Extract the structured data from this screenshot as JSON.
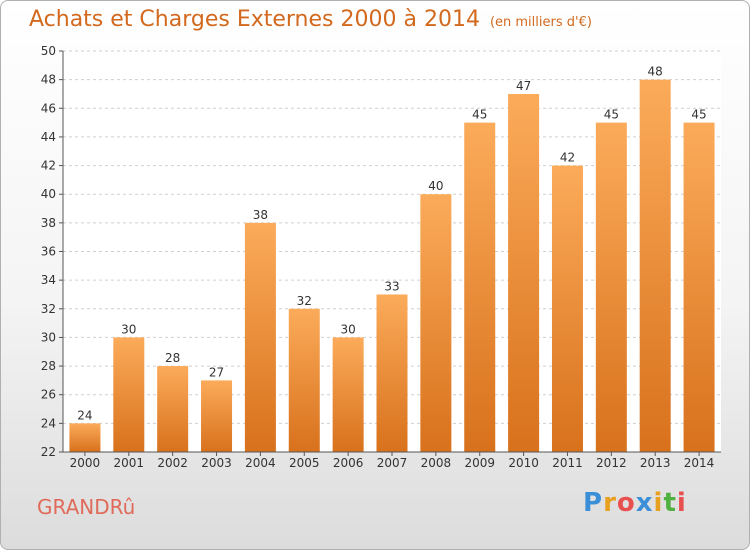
{
  "header": {
    "title": "Achats et Charges Externes 2000 à 2014",
    "subtitle": "(en milliers d'€)"
  },
  "footer": {
    "commune": "GRANDRû",
    "logo_letters": [
      "P",
      "r",
      "o",
      "x",
      "i",
      "t",
      "i"
    ],
    "logo_colors": [
      "#3a8fd8",
      "#e8a020",
      "#e85050",
      "#3a8fd8",
      "#e8a020",
      "#50b040",
      "#e85050"
    ]
  },
  "colors": {
    "bar_light": "#fbab5a",
    "bar_dark": "#d8711c",
    "title": "#d2691e",
    "commune": "#e06a5a",
    "grid": "#cfcfcf"
  },
  "chart_data": {
    "type": "bar",
    "categories": [
      "2000",
      "2001",
      "2002",
      "2003",
      "2004",
      "2005",
      "2006",
      "2007",
      "2008",
      "2009",
      "2010",
      "2011",
      "2012",
      "2013",
      "2014"
    ],
    "values": [
      24,
      30,
      28,
      27,
      38,
      32,
      30,
      33,
      40,
      45,
      47,
      42,
      45,
      48,
      45
    ],
    "title": "Achats et Charges Externes 2000 à 2014",
    "subtitle": "(en milliers d'€)",
    "xlabel": "",
    "ylabel": "",
    "ylim": [
      22,
      50
    ],
    "yticks": [
      22,
      24,
      26,
      28,
      30,
      32,
      34,
      36,
      38,
      40,
      42,
      44,
      46,
      48,
      50
    ],
    "grid": true,
    "data_labels": true
  }
}
